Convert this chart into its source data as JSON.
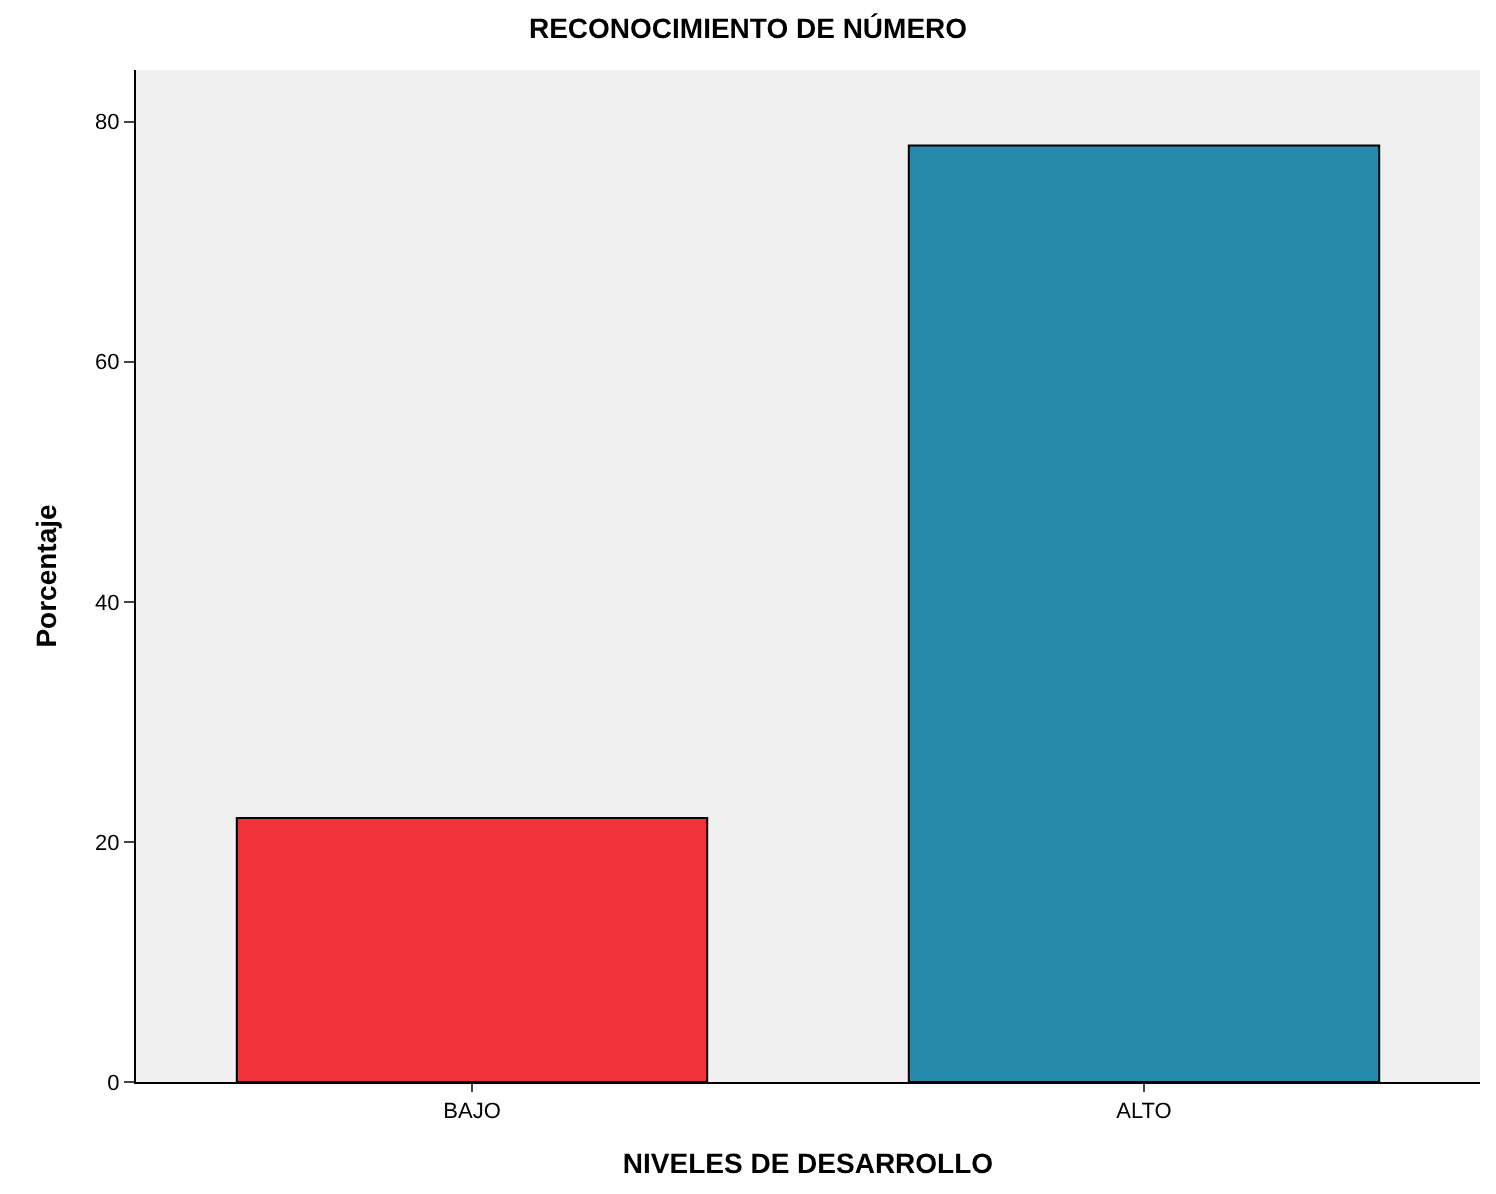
{
  "chart_data": {
    "type": "bar",
    "title": "RECONOCIMIENTO DE NÚMERO",
    "xlabel": "NIVELES DE DESARROLLO",
    "ylabel": "Porcentaje",
    "categories": [
      "BAJO",
      "ALTO"
    ],
    "values": [
      22,
      78
    ],
    "colors": [
      "#f0323a",
      "#278aad"
    ],
    "ylim": [
      0,
      84.3
    ],
    "yticks": [
      0,
      20,
      40,
      60,
      80
    ]
  }
}
